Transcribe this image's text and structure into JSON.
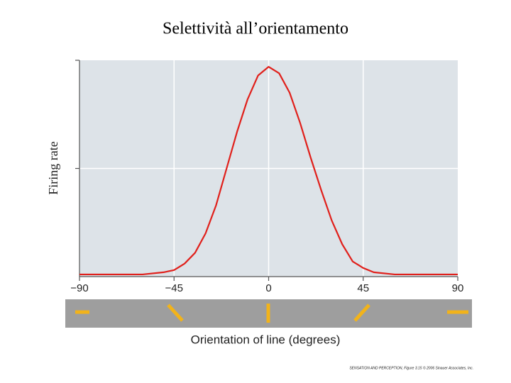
{
  "chart_data": {
    "type": "line",
    "title": "Selettività all’orientamento",
    "x_label": "Orientation of line (degrees)",
    "y_label": "Firing rate",
    "credit": "SENSATION AND PERCEPTION, Figure 3.15 © 2006 Sinauer Associates, Inc.",
    "x": [
      -90,
      -60,
      -50,
      -45,
      -40,
      -35,
      -30,
      -25,
      -20,
      -15,
      -10,
      -5,
      0,
      5,
      10,
      15,
      20,
      25,
      30,
      35,
      40,
      45,
      50,
      60,
      90
    ],
    "series": [
      {
        "color": "#e0201b",
        "values": [
          0.01,
          0.01,
          0.02,
          0.03,
          0.06,
          0.11,
          0.2,
          0.33,
          0.5,
          0.67,
          0.82,
          0.93,
          0.97,
          0.94,
          0.85,
          0.71,
          0.55,
          0.4,
          0.26,
          0.15,
          0.07,
          0.04,
          0.02,
          0.01,
          0.01
        ]
      }
    ],
    "xlim": [
      -90,
      90
    ],
    "xticks": [
      {
        "value": -90,
        "label": "−90"
      },
      {
        "value": -45,
        "label": "−45"
      },
      0,
      45,
      90
    ],
    "ylim": [
      0,
      1
    ],
    "yticks": [
      0.5,
      1
    ],
    "grid": true
  }
}
